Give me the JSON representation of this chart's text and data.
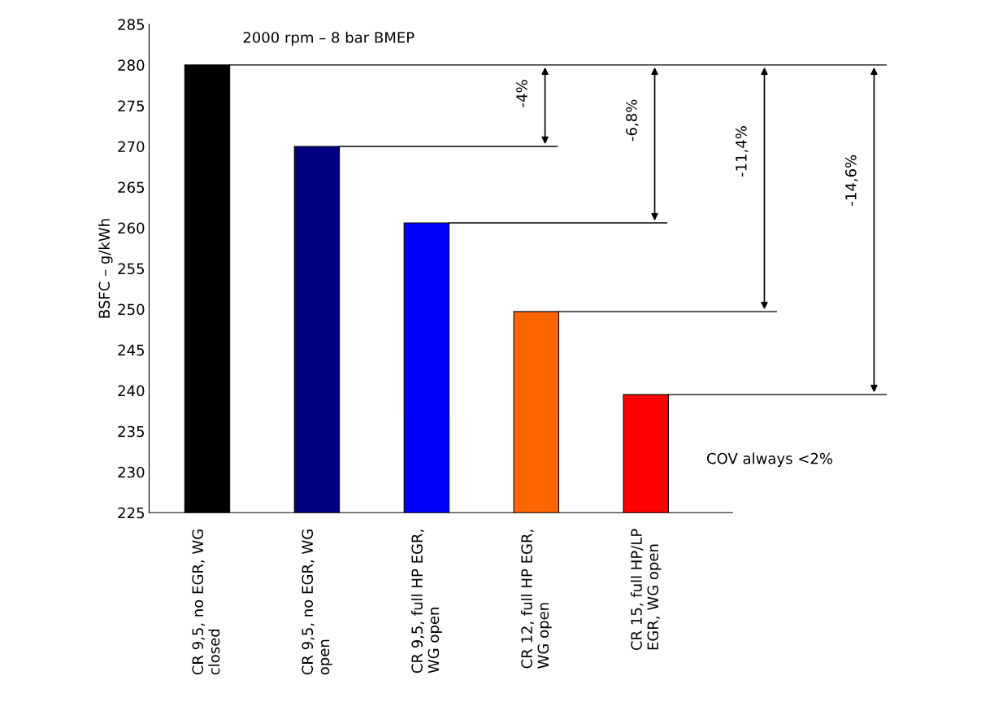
{
  "chart_data": {
    "type": "bar",
    "title": "2000 rpm – 8 bar BMEP",
    "ylabel": "BSFC – g/kWh",
    "categories": [
      "CR 9,5, no EGR, WG\nclosed",
      "CR 9,5, no EGR, WG\nopen",
      "CR 9,5, full HP EGR,\nWG open",
      "CR 12, full HP EGR,\nWG open",
      "CR 15, full HP/LP\nEGR, WG open"
    ],
    "values": [
      280,
      270,
      260.6,
      249.7,
      239.5
    ],
    "colors": [
      "#000000",
      "#000080",
      "#0000ff",
      "#ff6600",
      "#ff0000"
    ],
    "ylim": [
      225,
      285
    ],
    "yticks": [
      225,
      230,
      235,
      240,
      245,
      250,
      255,
      260,
      265,
      270,
      275,
      280,
      285
    ],
    "annotations": [
      "-4%",
      "-6,8%",
      "-11,4%",
      "-14,6%",
      "COV always <2%"
    ],
    "ref_lines": [
      {
        "axis": "y",
        "value": 280,
        "color": "#000000"
      },
      {
        "axis": "y",
        "value": 270,
        "color": "#000000"
      },
      {
        "axis": "y",
        "value": 260.6,
        "color": "#000000"
      },
      {
        "axis": "y",
        "value": 249.7,
        "color": "#000000"
      },
      {
        "axis": "y",
        "value": 239.5,
        "color": "#000000"
      }
    ],
    "legend": false
  }
}
